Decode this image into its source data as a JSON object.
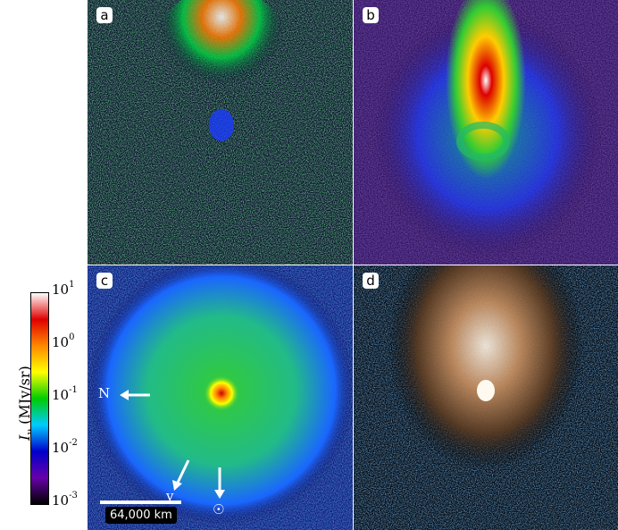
{
  "panels": [
    {
      "label": "a"
    },
    {
      "label": "b"
    },
    {
      "label": "c"
    },
    {
      "label": "d"
    }
  ],
  "colorbar": {
    "label": "I_ν (MJy/sr)",
    "ticks": [
      "10¹",
      "10⁰",
      "10⁻¹",
      "10⁻²",
      "10⁻³"
    ],
    "tick_base": "10",
    "tick_exponents": [
      "1",
      "0",
      "-1",
      "-2",
      "-3"
    ],
    "colors": [
      "#ffffff",
      "#e00000",
      "#ff8800",
      "#ffff00",
      "#00cc00",
      "#00ccff",
      "#0000cc",
      "#6600aa",
      "#000000"
    ]
  },
  "annotations": {
    "north_label": "N",
    "velocity_label": "v",
    "sun_symbol": "☉",
    "scale_bar": "64,000 km"
  }
}
